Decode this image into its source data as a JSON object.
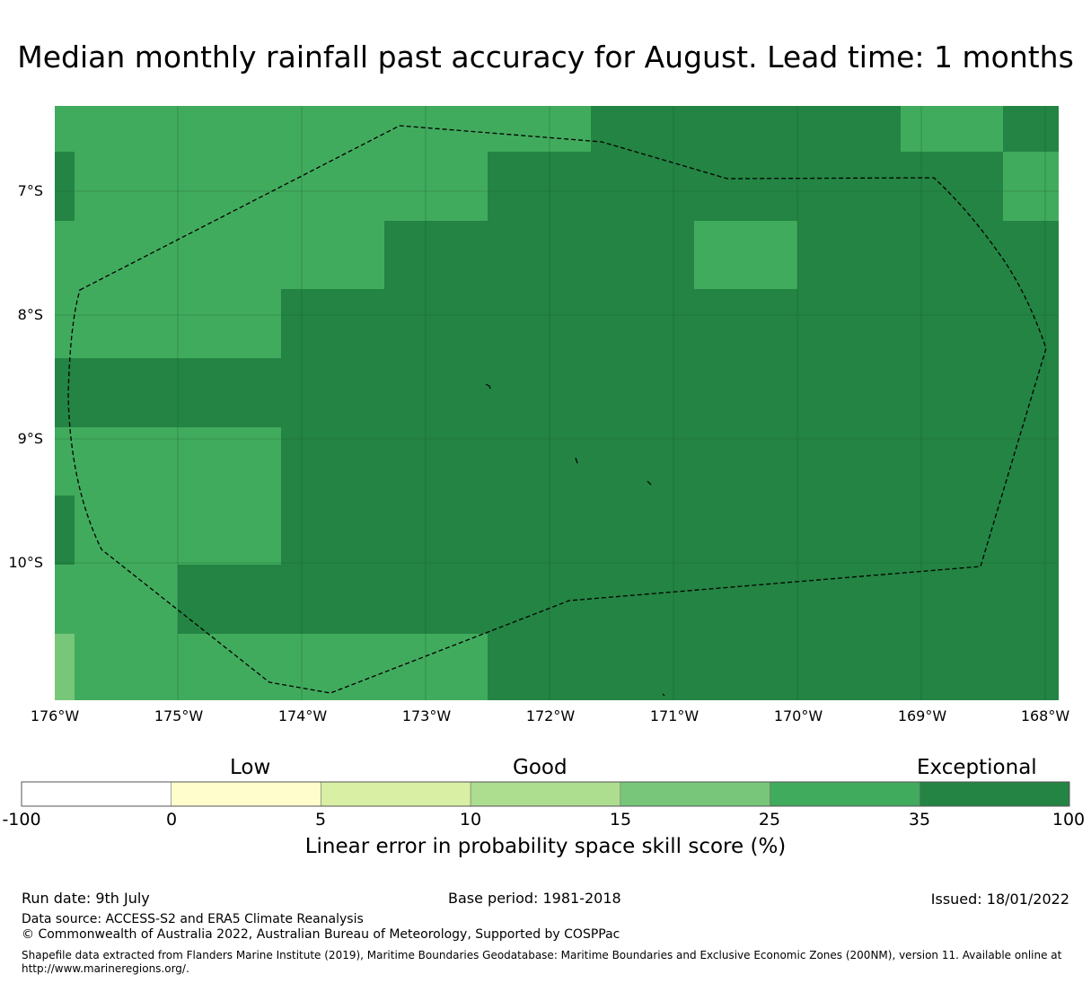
{
  "title": "Median monthly rainfall past accuracy for August. Lead time: 1 months",
  "map": {
    "lat_labels": [
      "7°S",
      "8°S",
      "9°S",
      "10°S"
    ],
    "lon_labels": [
      "176°W",
      "175°W",
      "174°W",
      "173°W",
      "172°W",
      "171°W",
      "170°W",
      "169°W",
      "168°W"
    ],
    "lon_range": [
      -176,
      -167.9
    ],
    "lat_range": [
      -11.15,
      -6.36
    ],
    "boundary_style": "dashed",
    "grid": true
  },
  "legend": {
    "categories": [
      "Low",
      "Good",
      "Exceptional"
    ],
    "ticks": [
      "-100",
      "0",
      "5",
      "10",
      "15",
      "25",
      "35",
      "100"
    ],
    "colors": [
      "#ffffff",
      "#fffdcc",
      "#d9efa3",
      "#addd8e",
      "#78c679",
      "#41ab5d",
      "#238443"
    ],
    "title": "Linear error in probability space skill score (%)"
  },
  "footer": {
    "run_date": "Run date: 9th July",
    "base_period": "Base period: 1981-2018",
    "issued": "Issued: 18/01/2022",
    "data_source": "Data source: ACCESS-S2 and ERA5 Climate Reanalysis",
    "copyright": "© Commonwealth of Australia 2022, Australian Bureau of Meteorology, Supported by COSPPac",
    "shapefile": "Shapefile data extracted from Flanders Marine Institute (2019), Maritime Boundaries Geodatabase: Maritime Boundaries and Exclusive Economic Zones (200NM), version 11. Available online at http://www.marineregions.org/."
  }
}
